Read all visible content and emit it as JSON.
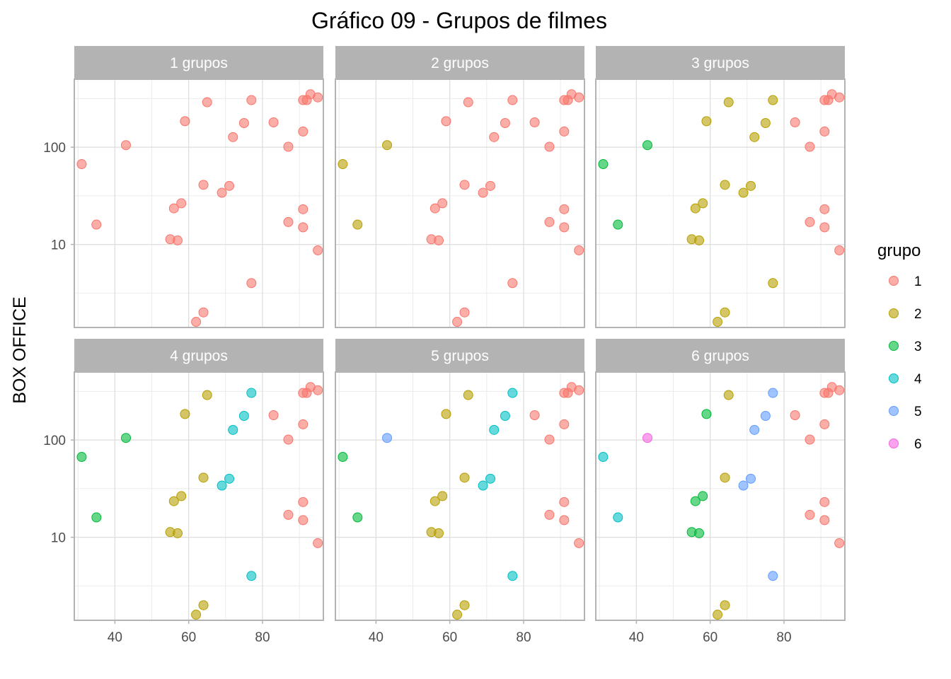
{
  "chart_data": {
    "type": "scatter",
    "title": "Gráfico 09 - Grupos de filmes",
    "xlabel": "",
    "ylabel": "BOX OFFICE",
    "x_ticks": [
      40,
      60,
      80
    ],
    "y_ticks": [
      10,
      100
    ],
    "y_scale": "log10",
    "xlim": [
      29,
      96.5
    ],
    "ylim": [
      1.4,
      500
    ],
    "grid": true,
    "legend": {
      "title": "grupo",
      "placement": "right",
      "entries": [
        {
          "label": "1",
          "color": "#F8766D"
        },
        {
          "label": "2",
          "color": "#B79F00"
        },
        {
          "label": "3",
          "color": "#00BA38"
        },
        {
          "label": "4",
          "color": "#00BFC4"
        },
        {
          "label": "5",
          "color": "#619CFF"
        },
        {
          "label": "6",
          "color": "#F564E3"
        }
      ]
    },
    "points": [
      {
        "x": 31,
        "y": 67
      },
      {
        "x": 35,
        "y": 16
      },
      {
        "x": 43,
        "y": 105
      },
      {
        "x": 55,
        "y": 11.3
      },
      {
        "x": 56,
        "y": 23.5
      },
      {
        "x": 57,
        "y": 11
      },
      {
        "x": 58,
        "y": 26.5
      },
      {
        "x": 59,
        "y": 185
      },
      {
        "x": 62,
        "y": 1.6
      },
      {
        "x": 64,
        "y": 2
      },
      {
        "x": 64,
        "y": 41
      },
      {
        "x": 65,
        "y": 290
      },
      {
        "x": 69,
        "y": 34
      },
      {
        "x": 71,
        "y": 40
      },
      {
        "x": 72,
        "y": 127
      },
      {
        "x": 75,
        "y": 177
      },
      {
        "x": 77,
        "y": 4
      },
      {
        "x": 77,
        "y": 305
      },
      {
        "x": 83,
        "y": 180
      },
      {
        "x": 87,
        "y": 17
      },
      {
        "x": 87,
        "y": 101
      },
      {
        "x": 91,
        "y": 15
      },
      {
        "x": 91,
        "y": 23
      },
      {
        "x": 91,
        "y": 145
      },
      {
        "x": 91,
        "y": 305
      },
      {
        "x": 92,
        "y": 305
      },
      {
        "x": 93,
        "y": 350
      },
      {
        "x": 95,
        "y": 8.7
      },
      {
        "x": 95,
        "y": 325
      }
    ],
    "panels": [
      {
        "strip": "1  grupos",
        "groups": [
          1,
          1,
          1,
          1,
          1,
          1,
          1,
          1,
          1,
          1,
          1,
          1,
          1,
          1,
          1,
          1,
          1,
          1,
          1,
          1,
          1,
          1,
          1,
          1,
          1,
          1,
          1,
          1,
          1
        ]
      },
      {
        "strip": "2  grupos",
        "groups": [
          2,
          2,
          2,
          1,
          1,
          1,
          1,
          1,
          1,
          1,
          1,
          1,
          1,
          1,
          1,
          1,
          1,
          1,
          1,
          1,
          1,
          1,
          1,
          1,
          1,
          1,
          1,
          1,
          1
        ]
      },
      {
        "strip": "3  grupos",
        "groups": [
          3,
          3,
          3,
          2,
          2,
          2,
          2,
          2,
          2,
          2,
          2,
          2,
          2,
          2,
          2,
          2,
          2,
          2,
          1,
          1,
          1,
          1,
          1,
          1,
          1,
          1,
          1,
          1,
          1
        ]
      },
      {
        "strip": "4  grupos",
        "groups": [
          3,
          3,
          3,
          2,
          2,
          2,
          2,
          2,
          2,
          2,
          2,
          2,
          4,
          4,
          4,
          4,
          4,
          4,
          1,
          1,
          1,
          1,
          1,
          1,
          1,
          1,
          1,
          1,
          1
        ]
      },
      {
        "strip": "5  grupos",
        "groups": [
          3,
          3,
          5,
          2,
          2,
          2,
          2,
          2,
          2,
          2,
          2,
          2,
          4,
          4,
          4,
          4,
          4,
          4,
          1,
          1,
          1,
          1,
          1,
          1,
          1,
          1,
          1,
          1,
          1
        ]
      },
      {
        "strip": "6  grupos",
        "groups": [
          4,
          4,
          6,
          3,
          3,
          3,
          3,
          3,
          2,
          2,
          2,
          2,
          5,
          5,
          5,
          5,
          5,
          5,
          1,
          1,
          1,
          1,
          1,
          1,
          1,
          1,
          1,
          1,
          1
        ]
      }
    ]
  }
}
